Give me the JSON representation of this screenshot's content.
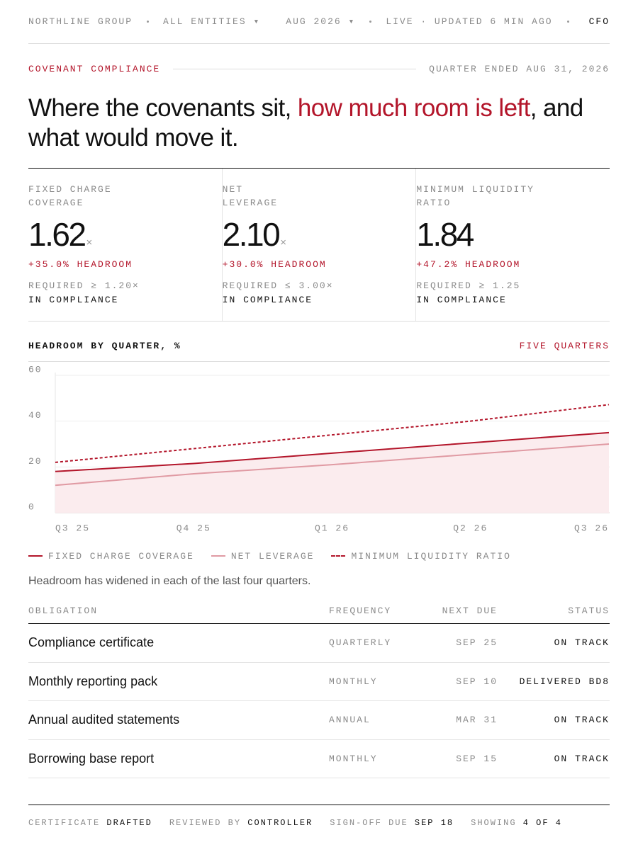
{
  "header": {
    "company": "NORTHLINE GROUP",
    "entity": "ALL ENTITIES ▾",
    "period": "AUG 2026 ▾",
    "status": "LIVE · UPDATED 6 MIN AGO",
    "role": "CFO"
  },
  "section": {
    "label": "COVENANT COMPLIANCE",
    "period": "QUARTER ENDED AUG 31, 2026"
  },
  "headline": {
    "lead": "Where the covenants sit, ",
    "highlight": "how much room is left",
    "tail": ", and what would move it."
  },
  "kpis": [
    {
      "label": [
        "FIXED CHARGE",
        "COVERAGE"
      ],
      "value": "1.62",
      "unit": "×",
      "headroom": "+35.0% HEADROOM",
      "requirement": "REQUIRED ≥ 1.20×",
      "status": "IN COMPLIANCE"
    },
    {
      "label": [
        "NET",
        "LEVERAGE"
      ],
      "value": "2.10",
      "unit": "×",
      "headroom": "+30.0% HEADROOM",
      "requirement": "REQUIRED ≤ 3.00×",
      "status": "IN COMPLIANCE"
    },
    {
      "label": [
        "MINIMUM LIQUIDITY",
        "RATIO"
      ],
      "value": "1.84",
      "headroom": "+47.2% HEADROOM",
      "requirement": "REQUIRED ≥ 1.25",
      "status": "IN COMPLIANCE"
    }
  ],
  "chart_data": {
    "type": "line",
    "title": "HEADROOM BY QUARTER, %",
    "subtitle": "FIVE QUARTERS",
    "categories": [
      "Q3 25",
      "Q4 25",
      "Q1 26",
      "Q2 26",
      "Q3 26"
    ],
    "ylim": [
      0,
      60
    ],
    "yticks": [
      0,
      20,
      40,
      60
    ],
    "grid": true,
    "series": [
      {
        "name": "FIXED CHARGE COVERAGE",
        "color": "#b3152a",
        "fill": "#fbecee",
        "dash": false,
        "values": [
          18,
          21.5,
          26,
          30.5,
          35
        ]
      },
      {
        "name": "NET LEVERAGE",
        "color": "#e09aa3",
        "dash": false,
        "values": [
          12,
          17,
          21,
          25.5,
          30
        ]
      },
      {
        "name": "MINIMUM LIQUIDITY RATIO",
        "color": "#b3152a",
        "dash": true,
        "values": [
          22,
          28,
          34,
          40,
          47.2
        ]
      }
    ]
  },
  "note": "Headroom has widened in each of the last four quarters.",
  "table": {
    "columns": [
      "OBLIGATION",
      "FREQUENCY",
      "NEXT DUE",
      "STATUS"
    ],
    "rows": [
      [
        "Compliance certificate",
        "QUARTERLY",
        "SEP 25",
        "ON TRACK"
      ],
      [
        "Monthly reporting pack",
        "MONTHLY",
        "SEP 10",
        "DELIVERED BD8"
      ],
      [
        "Annual audited statements",
        "ANNUAL",
        "MAR 31",
        "ON TRACK"
      ],
      [
        "Borrowing base report",
        "MONTHLY",
        "SEP 15",
        "ON TRACK"
      ]
    ]
  },
  "footer": [
    {
      "label": "CERTIFICATE",
      "value": "DRAFTED"
    },
    {
      "label": "REVIEWED BY",
      "value": "CONTROLLER"
    },
    {
      "label": "SIGN-OFF DUE",
      "value": "SEP 18"
    },
    {
      "label": "SHOWING",
      "value": "4 OF 4"
    }
  ]
}
